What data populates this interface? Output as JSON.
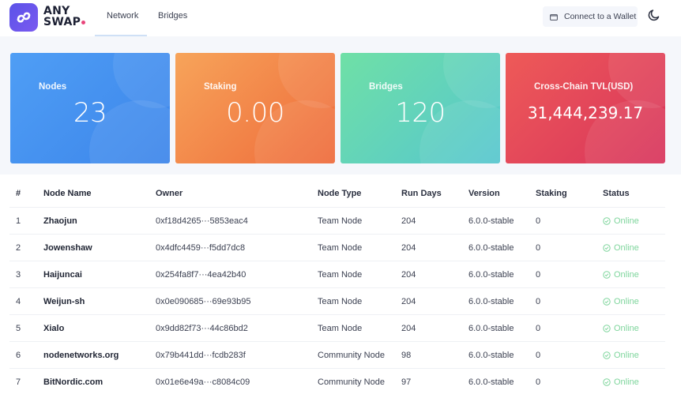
{
  "header": {
    "logo_line1": "ANY",
    "logo_line2": "SWAP",
    "tabs": [
      {
        "label": "Network",
        "active": true
      },
      {
        "label": "Bridges",
        "active": false
      }
    ],
    "connect_wallet_label": "Connect to a Wallet",
    "theme_icon": "moon-icon",
    "wallet_icon": "wallet-icon"
  },
  "stats": [
    {
      "label": "Nodes",
      "value": "23",
      "gradient": [
        "#4f9ef5",
        "#3c85ea"
      ]
    },
    {
      "label": "Staking",
      "value": "0.00",
      "gradient": [
        "#f7a45a",
        "#ee6a3a"
      ]
    },
    {
      "label": "Bridges",
      "value": "120",
      "gradient": [
        "#6fe0a6",
        "#56c6cf"
      ]
    },
    {
      "label": "Cross-Chain TVL(USD)",
      "value": "31,444,239.17",
      "gradient": [
        "#ee5a58",
        "#d8345c"
      ]
    }
  ],
  "table": {
    "headers": {
      "num": "#",
      "name": "Node Name",
      "owner": "Owner",
      "type": "Node Type",
      "days": "Run Days",
      "version": "Version",
      "staking": "Staking",
      "status": "Status"
    },
    "rows": [
      {
        "num": "1",
        "name": "Zhaojun",
        "owner": "0xf18d4265···5853eac4",
        "type": "Team Node",
        "days": "204",
        "version": "6.0.0-stable",
        "staking": "0",
        "status": "Online"
      },
      {
        "num": "2",
        "name": "Jowenshaw",
        "owner": "0x4dfc4459···f5dd7dc8",
        "type": "Team Node",
        "days": "204",
        "version": "6.0.0-stable",
        "staking": "0",
        "status": "Online"
      },
      {
        "num": "3",
        "name": "Haijuncai",
        "owner": "0x254fa8f7···4ea42b40",
        "type": "Team Node",
        "days": "204",
        "version": "6.0.0-stable",
        "staking": "0",
        "status": "Online"
      },
      {
        "num": "4",
        "name": "Weijun-sh",
        "owner": "0x0e090685···69e93b95",
        "type": "Team Node",
        "days": "204",
        "version": "6.0.0-stable",
        "staking": "0",
        "status": "Online"
      },
      {
        "num": "5",
        "name": "Xialo",
        "owner": "0x9dd82f73···44c86bd2",
        "type": "Team Node",
        "days": "204",
        "version": "6.0.0-stable",
        "staking": "0",
        "status": "Online"
      },
      {
        "num": "6",
        "name": "nodenetworks.org",
        "owner": "0x79b441dd···fcdb283f",
        "type": "Community Node",
        "days": "98",
        "version": "6.0.0-stable",
        "staking": "0",
        "status": "Online"
      },
      {
        "num": "7",
        "name": "BitNordic.com",
        "owner": "0x01e6e49a···c8084c09",
        "type": "Community Node",
        "days": "97",
        "version": "6.0.0-stable",
        "staking": "0",
        "status": "Online"
      }
    ],
    "status_color": "#7ed59c"
  }
}
